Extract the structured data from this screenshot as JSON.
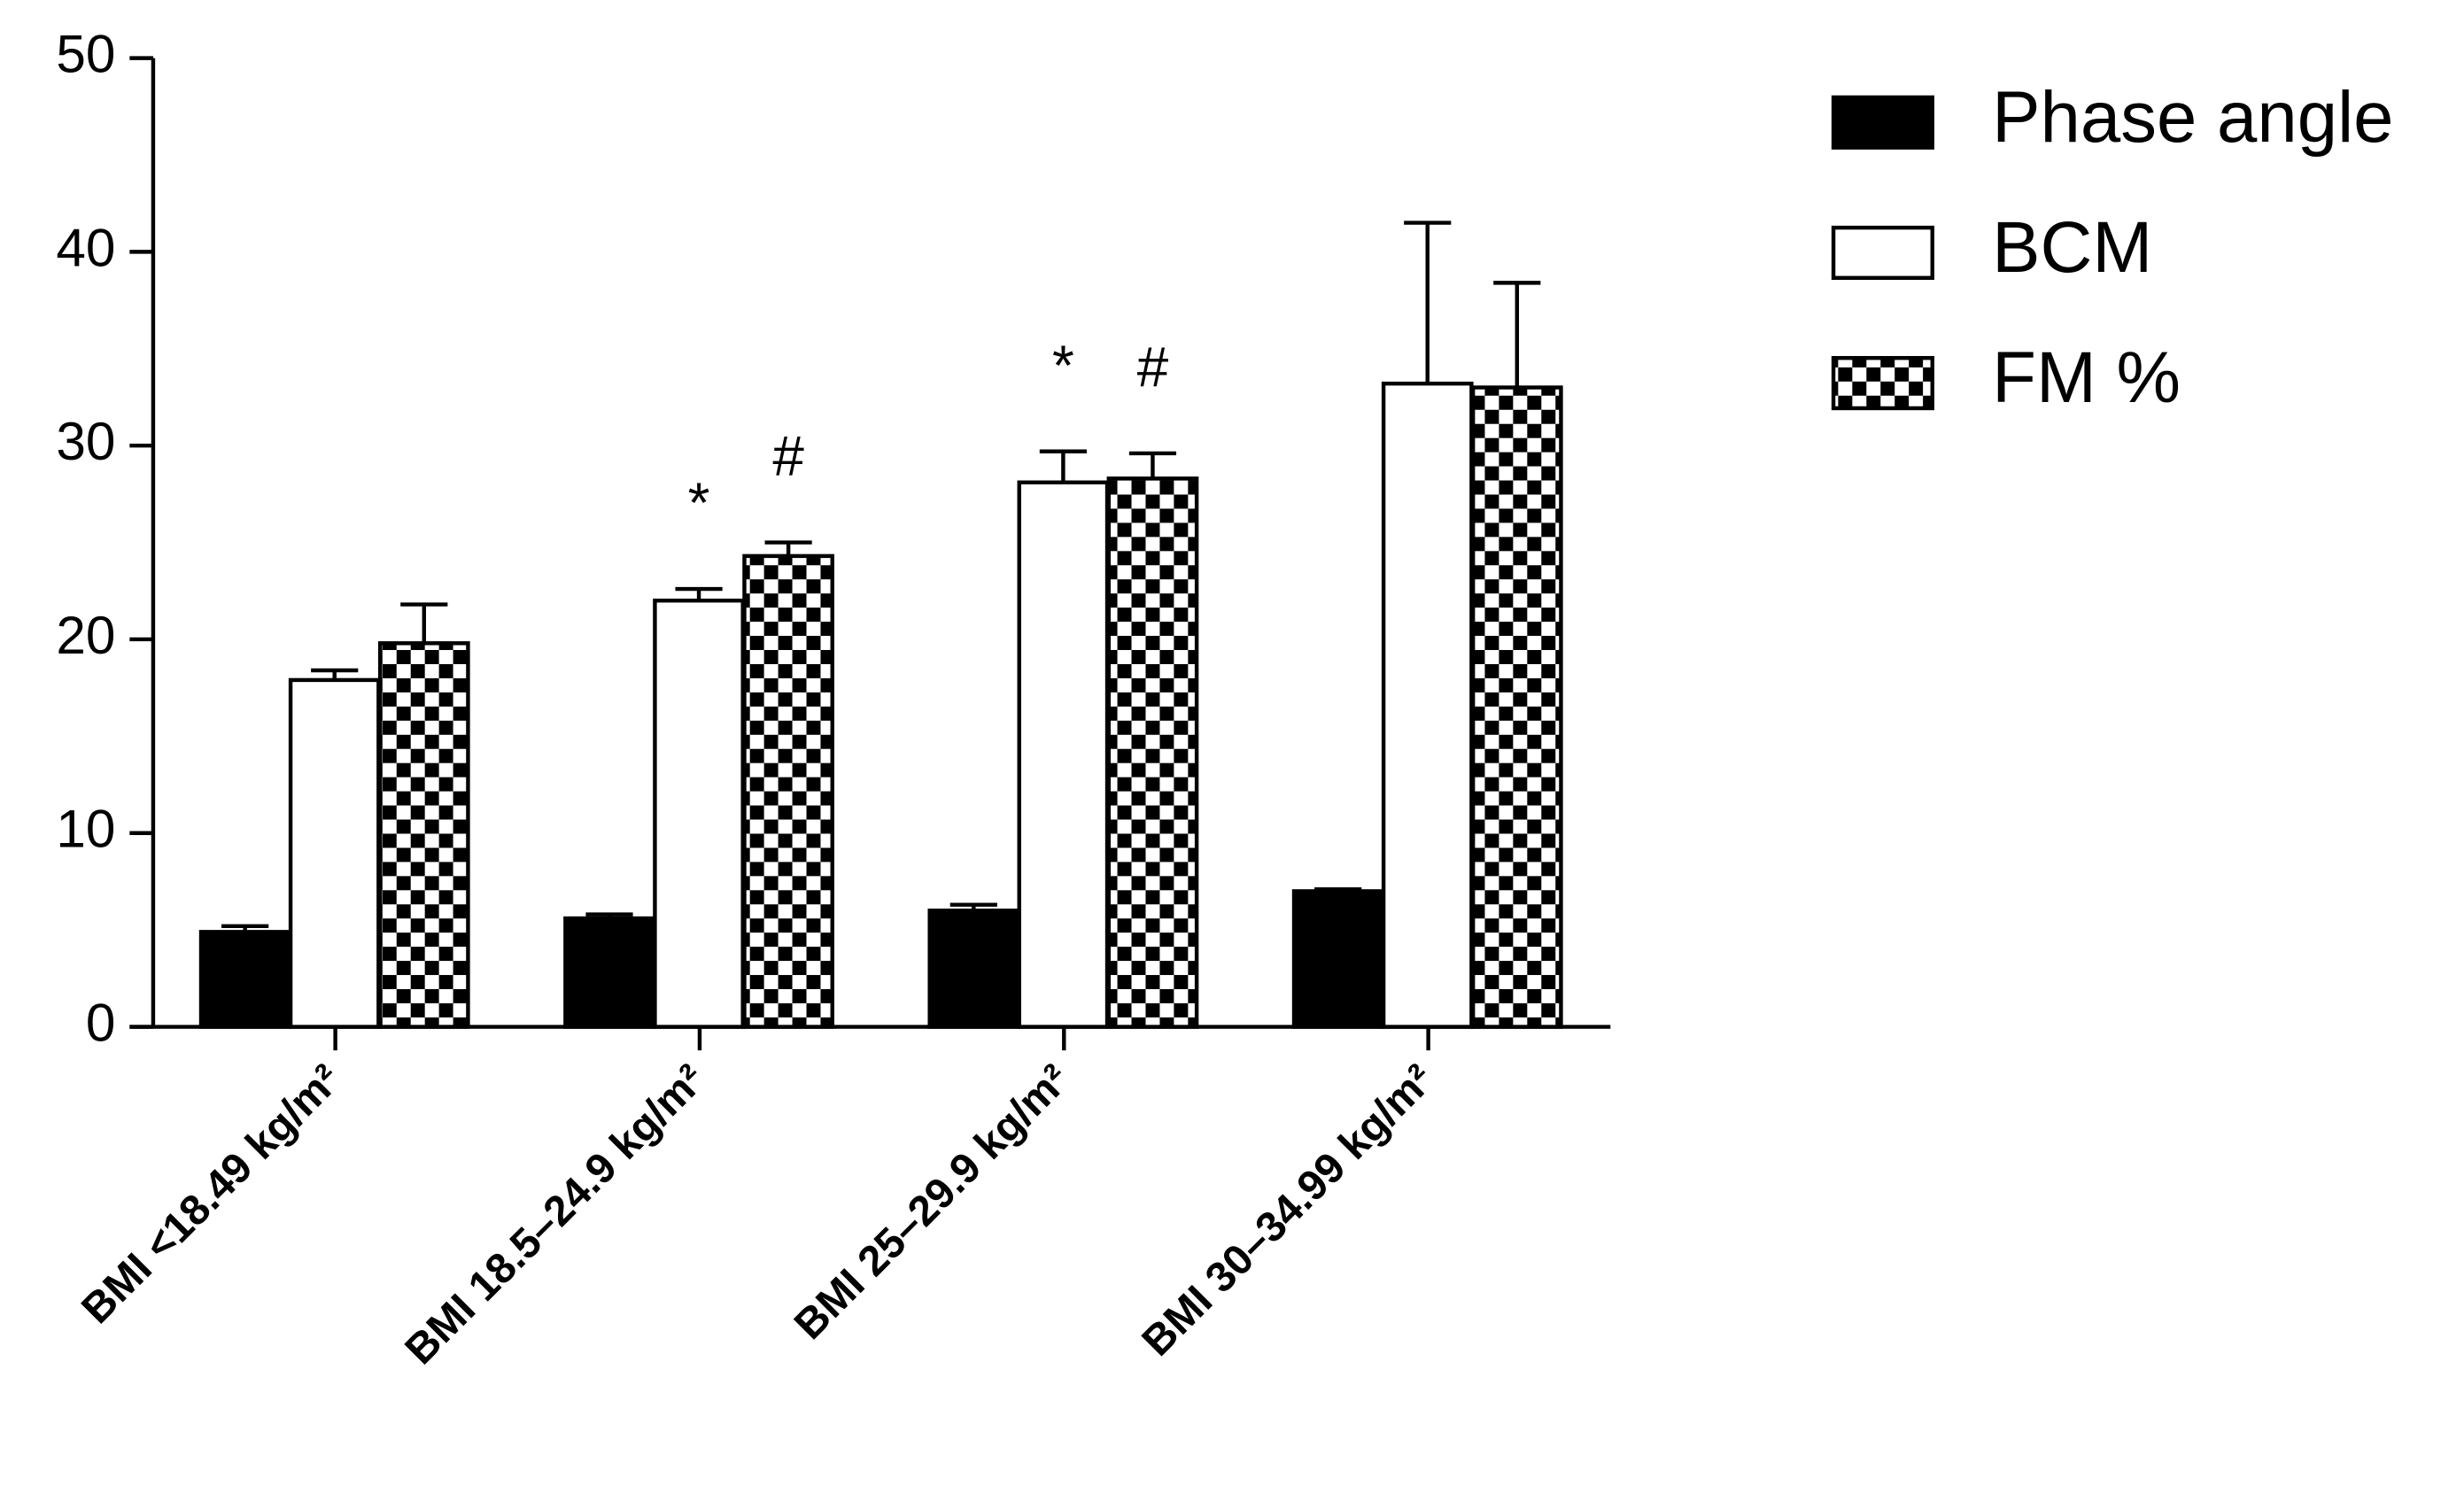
{
  "chart_data": {
    "type": "bar",
    "categories": [
      "BMI <18.49 kg/m²",
      "BMI 18.5–24.9 kg/m²",
      "BMI 25–29.9 kg/m²",
      "BMI 30–34.99 kg/m²"
    ],
    "series": [
      {
        "name": "Phase angle",
        "color": "#000000",
        "values": [
          4.9,
          5.6,
          6.0,
          7.0
        ],
        "errors": [
          0.3,
          0.2,
          0.3,
          0.1
        ],
        "annotations": [
          null,
          null,
          null,
          null
        ]
      },
      {
        "name": "BCM",
        "color": "#ffffff",
        "values": [
          17.9,
          22.0,
          28.1,
          33.2
        ],
        "errors": [
          0.5,
          0.6,
          1.6,
          8.3
        ],
        "annotations": [
          null,
          "*",
          "*",
          null
        ]
      },
      {
        "name": "FM %",
        "color": "#000000",
        "pattern": "checker",
        "values": [
          19.8,
          24.3,
          28.3,
          33.0
        ],
        "errors": [
          2.0,
          0.7,
          1.3,
          5.4
        ],
        "annotations": [
          null,
          "#",
          "#",
          null
        ]
      }
    ],
    "ylim": [
      0,
      50
    ],
    "yticks": [
      0,
      10,
      20,
      30,
      40,
      50
    ],
    "grid": false,
    "legend": "top-right"
  }
}
